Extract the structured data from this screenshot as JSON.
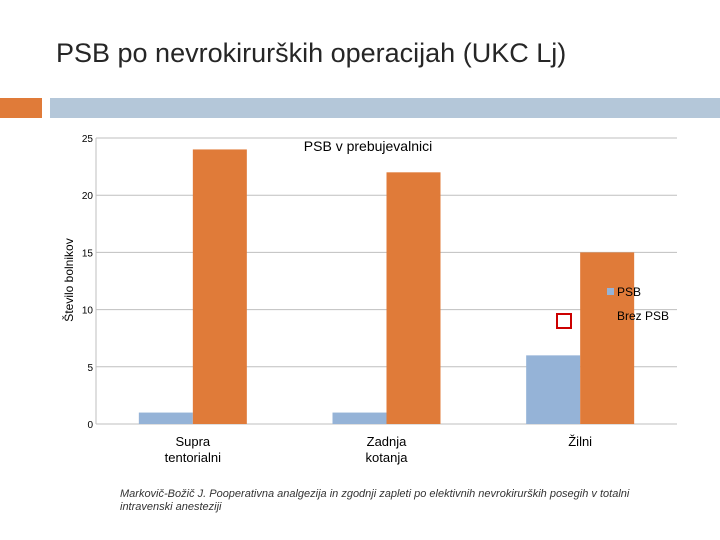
{
  "slide": {
    "title": "PSB po nevrokirurških operacijah (UKC Lj)",
    "citation": "Markovič-Božič J. Pooperativna analgezija in zgodnji zapleti po elektivnih nevrokirurških posegih v totalni intravenski anesteziji"
  },
  "colors": {
    "accent_orange": "#E07B39",
    "accent_blue": "#B4C7D9",
    "series_psb": "#95B3D7",
    "series_brez_psb": "#E07B39"
  },
  "chart_data": {
    "type": "bar",
    "title": "PSB v prebujevalnici",
    "ylabel": "Število bolnikov",
    "xlabel": "",
    "categories": [
      "Supra\ntentorialni",
      "Zadnja\nkotanja",
      "Žilni"
    ],
    "series": [
      {
        "name": "PSB",
        "values": [
          1,
          1,
          6
        ],
        "color": "#95B3D7"
      },
      {
        "name": "Brez PSB",
        "values": [
          24,
          22,
          15
        ],
        "color": "#E07B39"
      }
    ],
    "ylim": [
      0,
      25
    ],
    "yticks": [
      "0",
      "5",
      "10",
      "15",
      "20",
      "25"
    ],
    "grid": true,
    "legend": "right"
  }
}
